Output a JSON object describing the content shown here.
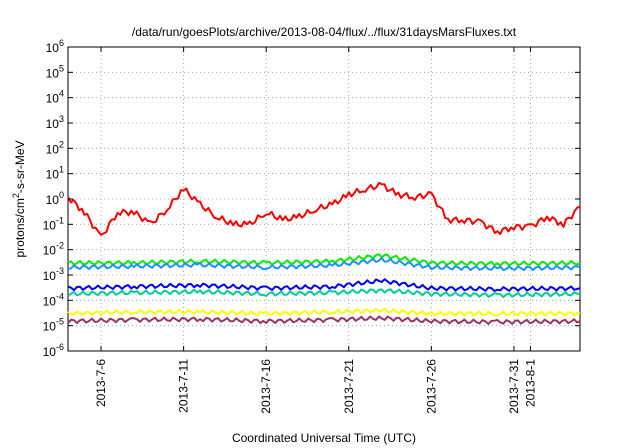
{
  "chart_data": {
    "type": "line",
    "title": "/data/run/goesPlots/archive/2013-08-04/flux/../flux/31daysMarsFluxes.txt",
    "xlabel": "Coordinated Universal Time (UTC)",
    "ylabel_prefix": "protons/cm",
    "ylabel_sup": "2",
    "ylabel_suffix": "-s-sr-MeV",
    "y_scale": "log",
    "ylim": [
      1e-06,
      1000000.0
    ],
    "y_ticks": [
      {
        "base": "10",
        "exp": "6",
        "value": 1000000.0
      },
      {
        "base": "10",
        "exp": "5",
        "value": 100000.0
      },
      {
        "base": "10",
        "exp": "4",
        "value": 10000.0
      },
      {
        "base": "10",
        "exp": "3",
        "value": 1000.0
      },
      {
        "base": "10",
        "exp": "2",
        "value": 100.0
      },
      {
        "base": "10",
        "exp": "1",
        "value": 10.0
      },
      {
        "base": "10",
        "exp": "0",
        "value": 1.0
      },
      {
        "base": "10",
        "exp": "-1",
        "value": 0.1
      },
      {
        "base": "10",
        "exp": "-2",
        "value": 0.01
      },
      {
        "base": "10",
        "exp": "-3",
        "value": 0.001
      },
      {
        "base": "10",
        "exp": "-4",
        "value": 0.0001
      },
      {
        "base": "10",
        "exp": "-5",
        "value": 1e-05
      },
      {
        "base": "10",
        "exp": "-6",
        "value": 1e-06
      }
    ],
    "xlim": [
      "2013-07-04",
      "2013-08-04"
    ],
    "x_ticks": [
      "2013-7-6",
      "2013-7-11",
      "2013-7-16",
      "2013-7-21",
      "2013-7-26",
      "2013-7-31",
      "2013-8-1"
    ],
    "grid": true,
    "series": [
      {
        "color": "#ff0000",
        "x": [
          "2013-07-04",
          "2013-07-05",
          "2013-07-06",
          "2013-07-07",
          "2013-07-08",
          "2013-07-09",
          "2013-07-10",
          "2013-07-11",
          "2013-07-12",
          "2013-07-13",
          "2013-07-14",
          "2013-07-15",
          "2013-07-16",
          "2013-07-17",
          "2013-07-18",
          "2013-07-19",
          "2013-07-20",
          "2013-07-21",
          "2013-07-22",
          "2013-07-23",
          "2013-07-24",
          "2013-07-25",
          "2013-07-26",
          "2013-07-27",
          "2013-07-28",
          "2013-07-29",
          "2013-07-30",
          "2013-07-31",
          "2013-08-01",
          "2013-08-02",
          "2013-08-03",
          "2013-08-04"
        ],
        "values": [
          1.2,
          0.3,
          0.03,
          0.3,
          0.3,
          0.1,
          0.4,
          2.5,
          0.6,
          0.2,
          0.1,
          0.1,
          0.3,
          0.15,
          0.2,
          0.4,
          0.6,
          1.5,
          2.5,
          3.5,
          1.5,
          1.2,
          1.5,
          0.15,
          0.15,
          0.12,
          0.05,
          0.08,
          0.08,
          0.2,
          0.1,
          0.5
        ]
      },
      {
        "color": "#00ee00",
        "x": [
          "2013-07-04",
          "2013-07-08",
          "2013-07-12",
          "2013-07-16",
          "2013-07-20",
          "2013-07-23",
          "2013-07-26",
          "2013-07-30",
          "2013-08-04"
        ],
        "values": [
          0.003,
          0.003,
          0.0035,
          0.003,
          0.0035,
          0.006,
          0.003,
          0.0028,
          0.003
        ]
      },
      {
        "color": "#1e90ff",
        "x": [
          "2013-07-04",
          "2013-07-08",
          "2013-07-12",
          "2013-07-16",
          "2013-07-20",
          "2013-07-23",
          "2013-07-26",
          "2013-07-30",
          "2013-08-04"
        ],
        "values": [
          0.002,
          0.0022,
          0.0025,
          0.002,
          0.0024,
          0.004,
          0.002,
          0.0018,
          0.002
        ]
      },
      {
        "color": "#0000ff",
        "x": [
          "2013-07-04",
          "2013-07-08",
          "2013-07-12",
          "2013-07-16",
          "2013-07-20",
          "2013-07-23",
          "2013-07-26",
          "2013-07-30",
          "2013-08-04"
        ],
        "values": [
          0.0003,
          0.00035,
          0.0004,
          0.0003,
          0.00035,
          0.0006,
          0.0003,
          0.00028,
          0.0003
        ]
      },
      {
        "color": "#00cc99",
        "x": [
          "2013-07-04",
          "2013-07-08",
          "2013-07-12",
          "2013-07-16",
          "2013-07-20",
          "2013-07-23",
          "2013-07-26",
          "2013-07-30",
          "2013-08-04"
        ],
        "values": [
          0.00018,
          0.0002,
          0.00022,
          0.00018,
          0.0002,
          0.00025,
          0.00018,
          0.00016,
          0.00018
        ]
      },
      {
        "color": "#ffff00",
        "x": [
          "2013-07-04",
          "2013-07-08",
          "2013-07-12",
          "2013-07-16",
          "2013-07-20",
          "2013-07-23",
          "2013-07-26",
          "2013-07-30",
          "2013-08-04"
        ],
        "values": [
          3e-05,
          3.5e-05,
          3.5e-05,
          3e-05,
          3.5e-05,
          4e-05,
          3e-05,
          3e-05,
          3e-05
        ]
      },
      {
        "color": "#993366",
        "x": [
          "2013-07-04",
          "2013-07-08",
          "2013-07-12",
          "2013-07-16",
          "2013-07-20",
          "2013-07-23",
          "2013-07-26",
          "2013-07-30",
          "2013-08-04"
        ],
        "values": [
          1.5e-05,
          1.7e-05,
          1.8e-05,
          1.5e-05,
          1.7e-05,
          2e-05,
          1.5e-05,
          1.4e-05,
          1.5e-05
        ]
      }
    ]
  }
}
